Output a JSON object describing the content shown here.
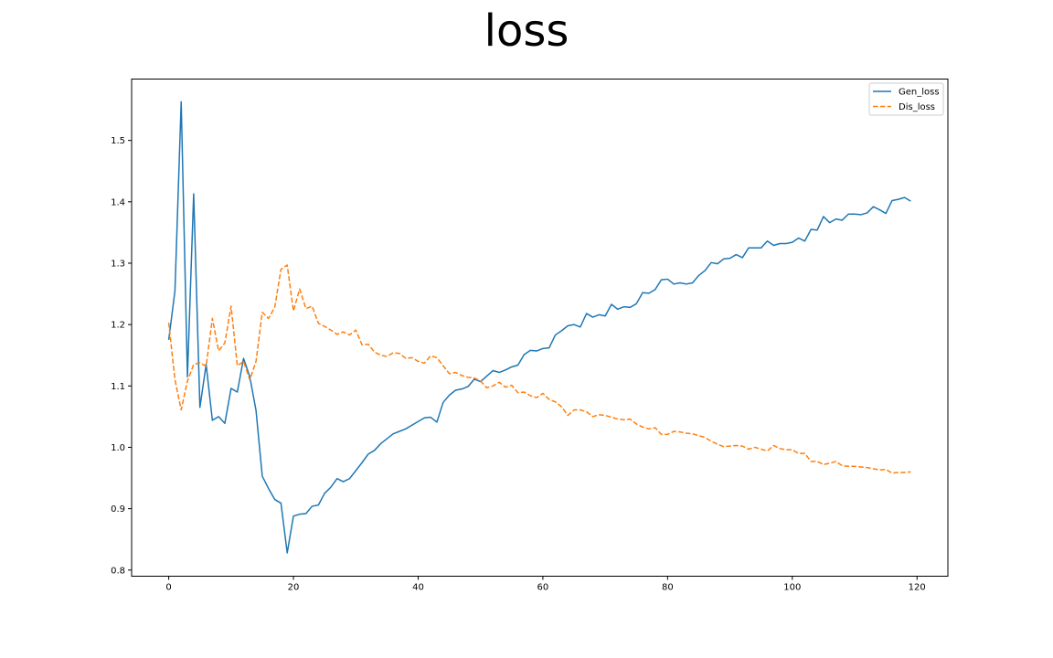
{
  "chart_data": {
    "type": "line",
    "title": "loss",
    "xlabel": "",
    "ylabel": "",
    "xlim": [
      -5.95,
      124.95
    ],
    "ylim": [
      0.79,
      1.6
    ],
    "xticks": [
      0,
      20,
      40,
      60,
      80,
      100,
      120
    ],
    "yticks": [
      0.8,
      0.9,
      1.0,
      1.1,
      1.2,
      1.3,
      1.4,
      1.5
    ],
    "ytick_labels": [
      "0.8",
      "0.9",
      "1.0",
      "1.1",
      "1.2",
      "1.3",
      "1.4",
      "1.5"
    ],
    "grid": false,
    "legend_position": "top-right",
    "series": [
      {
        "name": "Gen_loss",
        "color": "#1f77b4",
        "style": "solid",
        "values": [
          1.175,
          1.255,
          1.563,
          1.115,
          1.413,
          1.065,
          1.135,
          1.044,
          1.05,
          1.039,
          1.096,
          1.09,
          1.145,
          1.115,
          1.06,
          0.953,
          0.933,
          0.915,
          0.909,
          0.828,
          0.888,
          0.891,
          0.892,
          0.904,
          0.906,
          0.925,
          0.935,
          0.949,
          0.944,
          0.949,
          0.962,
          0.975,
          0.989,
          0.995,
          1.006,
          1.014,
          1.022,
          1.026,
          1.03,
          1.036,
          1.042,
          1.048,
          1.049,
          1.041,
          1.073,
          1.085,
          1.093,
          1.095,
          1.099,
          1.111,
          1.107,
          1.116,
          1.125,
          1.122,
          1.126,
          1.131,
          1.134,
          1.151,
          1.158,
          1.157,
          1.161,
          1.162,
          1.183,
          1.19,
          1.198,
          1.2,
          1.196,
          1.218,
          1.212,
          1.216,
          1.214,
          1.233,
          1.225,
          1.229,
          1.228,
          1.234,
          1.252,
          1.251,
          1.257,
          1.273,
          1.274,
          1.266,
          1.268,
          1.266,
          1.268,
          1.28,
          1.288,
          1.301,
          1.299,
          1.307,
          1.308,
          1.314,
          1.309,
          1.325,
          1.325,
          1.325,
          1.336,
          1.329,
          1.332,
          1.332,
          1.334,
          1.341,
          1.336,
          1.355,
          1.354,
          1.376,
          1.366,
          1.372,
          1.37,
          1.38,
          1.38,
          1.379,
          1.382,
          1.392,
          1.387,
          1.381,
          1.402,
          1.404,
          1.407,
          1.401
        ]
      },
      {
        "name": "Dis_loss",
        "color": "#ff7f0e",
        "style": "dashed",
        "values": [
          1.203,
          1.11,
          1.061,
          1.108,
          1.135,
          1.138,
          1.132,
          1.21,
          1.157,
          1.17,
          1.23,
          1.133,
          1.14,
          1.11,
          1.14,
          1.22,
          1.21,
          1.228,
          1.29,
          1.297,
          1.222,
          1.258,
          1.226,
          1.23,
          1.202,
          1.197,
          1.191,
          1.184,
          1.188,
          1.183,
          1.191,
          1.167,
          1.168,
          1.155,
          1.15,
          1.148,
          1.154,
          1.153,
          1.145,
          1.146,
          1.14,
          1.137,
          1.149,
          1.146,
          1.133,
          1.12,
          1.122,
          1.117,
          1.114,
          1.113,
          1.108,
          1.097,
          1.1,
          1.106,
          1.098,
          1.101,
          1.089,
          1.09,
          1.084,
          1.081,
          1.088,
          1.078,
          1.074,
          1.066,
          1.052,
          1.061,
          1.061,
          1.058,
          1.05,
          1.053,
          1.052,
          1.049,
          1.046,
          1.045,
          1.046,
          1.038,
          1.033,
          1.03,
          1.032,
          1.021,
          1.021,
          1.026,
          1.025,
          1.023,
          1.022,
          1.019,
          1.016,
          1.01,
          1.005,
          1.001,
          1.002,
          1.003,
          1.002,
          0.997,
          1.0,
          0.997,
          0.994,
          1.003,
          0.998,
          0.996,
          0.996,
          0.99,
          0.99,
          0.977,
          0.977,
          0.972,
          0.974,
          0.977,
          0.97,
          0.969,
          0.969,
          0.968,
          0.967,
          0.965,
          0.963,
          0.964,
          0.958,
          0.959,
          0.959,
          0.96
        ]
      }
    ]
  }
}
